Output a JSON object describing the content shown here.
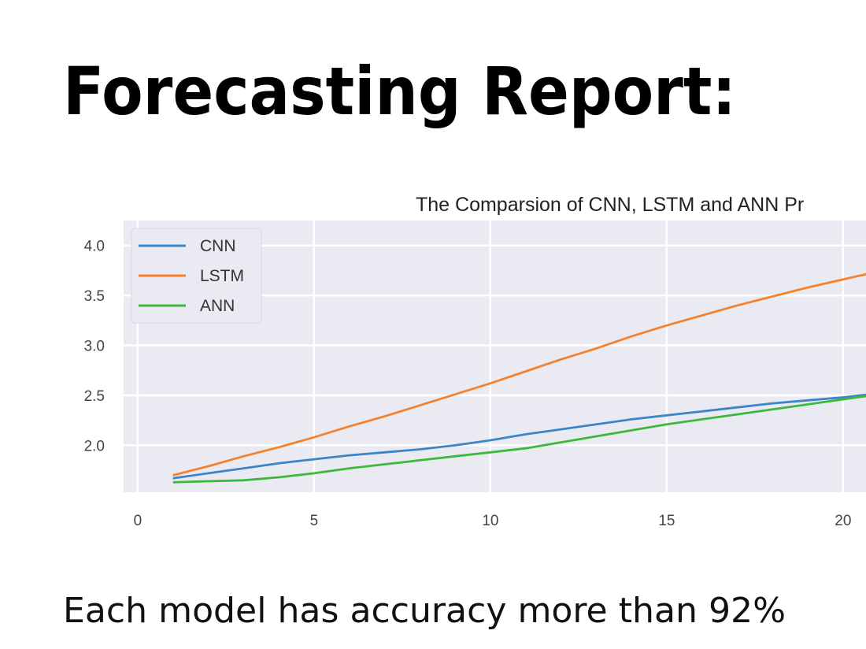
{
  "slide": {
    "title": "Forecasting Report:",
    "caption": "Each model has accuracy more than 92%"
  },
  "chart_data": {
    "type": "line",
    "title": "The Comparsion of CNN, LSTM and ANN Pr",
    "xlabel": "",
    "ylabel": "",
    "xlim": [
      -0.4,
      20.65
    ],
    "ylim": [
      1.53,
      4.25
    ],
    "xticks": [
      0,
      5,
      10,
      15,
      20
    ],
    "xtick_labels": [
      "0",
      "5",
      "10",
      "15",
      "20"
    ],
    "yticks": [
      2.0,
      2.5,
      3.0,
      3.5,
      4.0
    ],
    "ytick_labels": [
      "2.0",
      "2.5",
      "3.0",
      "3.5",
      "4.0"
    ],
    "grid": true,
    "legend_placement": "top-left",
    "x": [
      1,
      2,
      3,
      4,
      5,
      6,
      7,
      8,
      9,
      10,
      11,
      12,
      13,
      14,
      15,
      16,
      17,
      18,
      19,
      20,
      21
    ],
    "series": [
      {
        "name": "CNN",
        "color": "#3a86c8",
        "values": [
          1.67,
          1.72,
          1.77,
          1.82,
          1.86,
          1.9,
          1.93,
          1.96,
          2.0,
          2.05,
          2.11,
          2.16,
          2.21,
          2.26,
          2.3,
          2.34,
          2.38,
          2.42,
          2.45,
          2.48,
          2.52
        ]
      },
      {
        "name": "LSTM",
        "color": "#f5822a",
        "values": [
          1.7,
          1.79,
          1.89,
          1.98,
          2.08,
          2.19,
          2.29,
          2.4,
          2.51,
          2.62,
          2.74,
          2.86,
          2.97,
          3.09,
          3.2,
          3.3,
          3.4,
          3.49,
          3.58,
          3.66,
          3.74
        ]
      },
      {
        "name": "ANN",
        "color": "#3cb93c",
        "values": [
          1.63,
          1.64,
          1.65,
          1.68,
          1.72,
          1.77,
          1.81,
          1.85,
          1.89,
          1.93,
          1.97,
          2.03,
          2.09,
          2.15,
          2.21,
          2.26,
          2.31,
          2.36,
          2.41,
          2.46,
          2.51
        ]
      }
    ]
  }
}
